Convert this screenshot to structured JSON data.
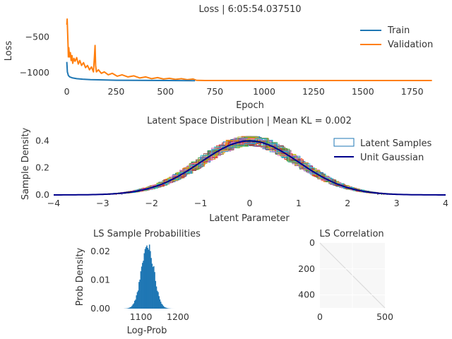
{
  "chart_data": [
    {
      "type": "line",
      "title": "Loss | 6:05:54.037510",
      "xlabel": "Epoch",
      "ylabel": "Loss",
      "xlim": [
        -20,
        1880
      ],
      "ylim": [
        -1150,
        -220
      ],
      "xticks": [
        0,
        250,
        500,
        750,
        1000,
        1250,
        1500,
        1750
      ],
      "yticks": [
        -500,
        -1000
      ],
      "ytick_labels": [
        "−500",
        "−1000"
      ],
      "legend_position": "top-right",
      "grid": false,
      "series": [
        {
          "name": "Train",
          "color": "#1f77b4",
          "x": [
            0,
            3,
            8,
            15,
            30,
            50,
            80,
            120,
            180,
            250,
            350,
            500,
            650
          ],
          "y": [
            -850,
            -990,
            -1040,
            -1060,
            -1075,
            -1085,
            -1092,
            -1098,
            -1102,
            -1106,
            -1108,
            -1110,
            -1112
          ]
        },
        {
          "name": "Validation",
          "color": "#ff7f0e",
          "x": [
            0,
            2,
            4,
            6,
            8,
            10,
            14,
            18,
            22,
            26,
            30,
            36,
            42,
            50,
            58,
            66,
            75,
            85,
            95,
            105,
            115,
            125,
            135,
            140,
            143,
            146,
            150,
            160,
            175,
            190,
            210,
            230,
            255,
            280,
            310,
            340,
            370,
            400,
            430,
            460,
            490,
            520,
            550,
            580,
            610,
            640,
            655,
            660,
            700,
            800,
            1000,
            1200,
            1400,
            1600,
            1800,
            1850
          ],
          "y": [
            -330,
            -250,
            -420,
            -600,
            -780,
            -650,
            -780,
            -720,
            -830,
            -760,
            -870,
            -800,
            -840,
            -790,
            -880,
            -830,
            -900,
            -860,
            -930,
            -900,
            -960,
            -920,
            -990,
            -780,
            -620,
            -900,
            -990,
            -960,
            -1010,
            -990,
            -1030,
            -1010,
            -1050,
            -1030,
            -1060,
            -1045,
            -1075,
            -1060,
            -1085,
            -1070,
            -1090,
            -1080,
            -1095,
            -1085,
            -1100,
            -1090,
            -1105,
            -1108,
            -1110,
            -1110,
            -1110,
            -1110,
            -1110,
            -1110,
            -1110,
            -1110
          ]
        }
      ]
    },
    {
      "type": "area",
      "title": "Latent Space Distribution | Mean KL = 0.002",
      "xlabel": "Latent Parameter",
      "ylabel": "Sample Density",
      "xlim": [
        -4,
        4
      ],
      "ylim": [
        0,
        0.48
      ],
      "xticks": [
        -4,
        -3,
        -2,
        -1,
        0,
        1,
        2,
        3,
        4
      ],
      "xtick_labels": [
        "−4",
        "−3",
        "−2",
        "−1",
        "0",
        "1",
        "2",
        "3",
        "4"
      ],
      "yticks": [
        0.0,
        0.2,
        0.4
      ],
      "ytick_labels": [
        "0.0",
        "0.2",
        "0.4"
      ],
      "legend_position": "top-right",
      "grid": false,
      "series": [
        {
          "name": "Latent Samples",
          "color": "#1f77b4",
          "kind": "histogram-outlines"
        },
        {
          "name": "Unit Gaussian",
          "color": "#00008b",
          "kind": "pdf",
          "mean": 0,
          "std": 1
        }
      ]
    },
    {
      "type": "bar",
      "title": "LS Sample Probabilities",
      "xlabel": "Log-Prob",
      "ylabel": "Prob Density",
      "xlim": [
        1030,
        1225
      ],
      "ylim": [
        0,
        0.0235
      ],
      "xticks": [
        1100,
        1200
      ],
      "xtick_labels": [
        "1100",
        "1200"
      ],
      "yticks": [
        0.0,
        0.01,
        0.02
      ],
      "ytick_labels": [
        "0.00",
        "0.01",
        "0.02"
      ],
      "grid": false,
      "color": "#1f77b4",
      "mean": 1118,
      "std": 17,
      "peak": 0.0222
    },
    {
      "type": "heatmap",
      "title": "LS Correlation",
      "xlim": [
        0,
        500
      ],
      "ylim": [
        500,
        0
      ],
      "xticks": [
        0,
        500
      ],
      "xtick_labels": [
        "0",
        "500"
      ],
      "yticks": [
        0,
        200,
        400
      ],
      "ytick_labels": [
        "0",
        "200",
        "400"
      ],
      "diagonal_value": 1,
      "off_diagonal_value": 0
    }
  ]
}
